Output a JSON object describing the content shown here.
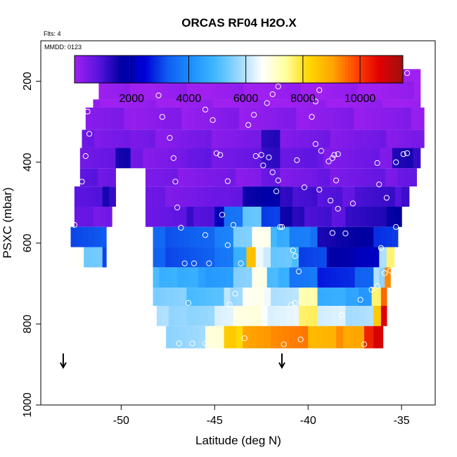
{
  "chart_data": {
    "type": "heatmap",
    "title": "ORCAS RF04 H2O.X",
    "notes": [
      "Flts: 4",
      "MMDD: 0123"
    ],
    "xlabel": "Latitude (deg N)",
    "ylabel": "PSXC (mbar)",
    "xlim": [
      -54.3,
      -33.2
    ],
    "ylim": [
      1000,
      100
    ],
    "y_reversed": true,
    "x_ticks": [
      -50,
      -45,
      -40,
      -35
    ],
    "x_tick_labels": [
      "-50",
      "-45",
      "-40",
      "-35"
    ],
    "y_ticks": [
      200,
      400,
      600,
      800,
      1000
    ],
    "y_tick_labels": [
      "200",
      "400",
      "600",
      "800",
      "1000"
    ],
    "colorbar": {
      "min": 0,
      "max": 11500,
      "ticks": [
        2000,
        4000,
        6000,
        8000,
        10000
      ],
      "tick_labels": [
        "2000",
        "4000",
        "6000",
        "8000",
        "10000"
      ],
      "colors": [
        "#a020f0",
        "#5a14e0",
        "#0000a0",
        "#0000d8",
        "#1060f0",
        "#1e90ff",
        "#40b8ff",
        "#9ad8ff",
        "#ffffff",
        "#ffffa0",
        "#ffd700",
        "#ffa500",
        "#ff4500",
        "#e00000",
        "#a01010"
      ]
    },
    "arrows": [
      {
        "lat": -53.1,
        "psxc": 890
      },
      {
        "lat": -41.4,
        "psxc": 890
      }
    ],
    "rows": [
      {
        "p0": 170,
        "p1": 200,
        "cells": [
          [
            -51.2,
            -42.2,
            50
          ],
          [
            -42.2,
            -34.0,
            50
          ]
        ]
      },
      {
        "p0": 200,
        "p1": 245,
        "cells": [
          [
            -51.2,
            -34.0,
            50
          ]
        ]
      },
      {
        "p0": 245,
        "p1": 265,
        "cells": [
          [
            -51.5,
            -34.0,
            50
          ]
        ]
      },
      {
        "p0": 265,
        "p1": 320,
        "cells": [
          [
            -51.9,
            -49.5,
            300
          ],
          [
            -49.5,
            -33.8,
            250
          ]
        ]
      },
      {
        "p0": 320,
        "p1": 365,
        "cells": [
          [
            -52.1,
            -49.5,
            500
          ],
          [
            -49.5,
            -42.5,
            400
          ],
          [
            -42.5,
            -41.5,
            1300
          ],
          [
            -41.5,
            -33.8,
            450
          ]
        ]
      },
      {
        "p0": 365,
        "p1": 415,
        "cells": [
          [
            -52.2,
            -50.3,
            600
          ],
          [
            -50.3,
            -49.5,
            1600
          ],
          [
            -49.5,
            -46.5,
            450
          ],
          [
            -46.5,
            -42.5,
            600
          ],
          [
            -42.5,
            -41.5,
            1200
          ],
          [
            -41.5,
            -39.5,
            700
          ],
          [
            -39.5,
            -35.5,
            500
          ],
          [
            -35.5,
            -34.0,
            1300
          ]
        ]
      },
      {
        "p0": 415,
        "p1": 460,
        "cells": [
          [
            -52.2,
            -50.3,
            700
          ],
          [
            -48.7,
            -42.5,
            400
          ],
          [
            -42.5,
            -41.5,
            700
          ],
          [
            -41.5,
            -39.5,
            500
          ],
          [
            -39.5,
            -35.2,
            550
          ],
          [
            -35.2,
            -34.2,
            600
          ]
        ]
      },
      {
        "p0": 460,
        "p1": 510,
        "cells": [
          [
            -52.5,
            -51.0,
            900
          ],
          [
            -51.0,
            -50.3,
            1300
          ],
          [
            -48.7,
            -44.5,
            500
          ],
          [
            -44.5,
            -43.5,
            650
          ],
          [
            -43.5,
            -42.5,
            1600
          ],
          [
            -42.5,
            -41.5,
            1900
          ],
          [
            -41.5,
            -39.5,
            1100
          ],
          [
            -39.5,
            -37.5,
            800
          ],
          [
            -37.5,
            -35.0,
            1000
          ],
          [
            -35.0,
            -34.6,
            1200
          ]
        ]
      },
      {
        "p0": 510,
        "p1": 560,
        "cells": [
          [
            -52.5,
            -51.5,
            600
          ],
          [
            -51.5,
            -50.5,
            500
          ],
          [
            -48.7,
            -46.5,
            700
          ],
          [
            -46.5,
            -45.0,
            1000
          ],
          [
            -45.0,
            -44.5,
            1900
          ],
          [
            -44.5,
            -43.5,
            3600
          ],
          [
            -43.5,
            -42.5,
            5300
          ],
          [
            -42.5,
            -41.5,
            3100
          ],
          [
            -41.5,
            -40.2,
            1400
          ],
          [
            -40.2,
            -38.0,
            900
          ],
          [
            -38.0,
            -35.8,
            1200
          ],
          [
            -35.8,
            -35.0,
            1700
          ]
        ]
      },
      {
        "p0": 560,
        "p1": 610,
        "cells": [
          [
            -52.7,
            -50.8,
            3200
          ],
          [
            -48.3,
            -45.0,
            3300
          ],
          [
            -45.0,
            -44.0,
            3800
          ],
          [
            -44.0,
            -43.0,
            5500
          ],
          [
            -43.0,
            -42.0,
            6800
          ],
          [
            -42.0,
            -41.0,
            4800
          ],
          [
            -41.0,
            -39.5,
            3700
          ],
          [
            -39.5,
            -38.5,
            1400
          ],
          [
            -38.5,
            -36.5,
            1600
          ],
          [
            -36.5,
            -35.2,
            3000
          ]
        ]
      },
      {
        "p0": 610,
        "p1": 660,
        "cells": [
          [
            -52.7,
            -52.0,
            6600
          ],
          [
            -52.0,
            -51.0,
            5400
          ],
          [
            -51.0,
            -50.8,
            3200
          ],
          [
            -48.3,
            -45.0,
            3200
          ],
          [
            -45.0,
            -44.0,
            3600
          ],
          [
            -44.0,
            -43.3,
            4800
          ],
          [
            -43.3,
            -42.8,
            8700
          ],
          [
            -42.8,
            -42.0,
            6300
          ],
          [
            -42.0,
            -40.5,
            5200
          ],
          [
            -40.5,
            -39.0,
            3000
          ],
          [
            -39.0,
            -37.5,
            1800
          ],
          [
            -37.5,
            -36.2,
            2200
          ],
          [
            -36.2,
            -35.8,
            5800
          ],
          [
            -35.8,
            -35.4,
            7600
          ]
        ]
      },
      {
        "p0": 660,
        "p1": 710,
        "cells": [
          [
            -48.3,
            -47.0,
            4900
          ],
          [
            -47.0,
            -45.5,
            4600
          ],
          [
            -45.5,
            -44.0,
            4300
          ],
          [
            -44.0,
            -43.0,
            5600
          ],
          [
            -43.0,
            -42.2,
            6900
          ],
          [
            -42.2,
            -41.0,
            4900
          ],
          [
            -41.0,
            -39.5,
            3600
          ],
          [
            -39.5,
            -37.5,
            2700
          ],
          [
            -37.5,
            -36.5,
            3400
          ],
          [
            -36.5,
            -35.9,
            5800
          ],
          [
            -35.9,
            -35.6,
            9200
          ]
        ]
      },
      {
        "p0": 710,
        "p1": 755,
        "cells": [
          [
            -48.3,
            -46.5,
            5500
          ],
          [
            -46.5,
            -44.5,
            5100
          ],
          [
            -44.5,
            -43.5,
            5900
          ],
          [
            -43.5,
            -42.0,
            6600
          ],
          [
            -42.0,
            -40.5,
            5900
          ],
          [
            -40.5,
            -39.5,
            7300
          ],
          [
            -39.5,
            -38.0,
            4800
          ],
          [
            -38.0,
            -36.6,
            4400
          ],
          [
            -36.6,
            -36.1,
            7600
          ],
          [
            -36.1,
            -35.8,
            9600
          ]
        ]
      },
      {
        "p0": 755,
        "p1": 805,
        "cells": [
          [
            -48.1,
            -46.5,
            5800
          ],
          [
            -46.5,
            -45.0,
            5600
          ],
          [
            -45.0,
            -44.0,
            6300
          ],
          [
            -44.0,
            -42.5,
            6900
          ],
          [
            -42.5,
            -40.5,
            6400
          ],
          [
            -40.5,
            -39.5,
            7600
          ],
          [
            -39.5,
            -38.0,
            6200
          ],
          [
            -38.0,
            -36.5,
            5900
          ],
          [
            -36.5,
            -36.1,
            8600
          ],
          [
            -36.1,
            -35.8,
            10600
          ]
        ]
      },
      {
        "p0": 805,
        "p1": 860,
        "cells": [
          [
            -47.6,
            -45.5,
            5700
          ],
          [
            -45.5,
            -44.5,
            7000
          ],
          [
            -44.5,
            -43.5,
            8300
          ],
          [
            -43.5,
            -42.0,
            9000
          ],
          [
            -42.0,
            -40.0,
            9300
          ],
          [
            -40.0,
            -38.5,
            8800
          ],
          [
            -38.5,
            -37.0,
            9100
          ],
          [
            -37.0,
            -36.5,
            10200
          ],
          [
            -36.5,
            -36.0,
            10800
          ]
        ]
      }
    ],
    "points": [
      [
        -51.1,
        195
      ],
      [
        -50.9,
        178
      ],
      [
        -50.6,
        178
      ],
      [
        -50.3,
        178
      ],
      [
        -50.0,
        178
      ],
      [
        -49.6,
        178
      ],
      [
        -49.2,
        178
      ],
      [
        -48.9,
        178
      ],
      [
        -48.5,
        178
      ],
      [
        -48.3,
        185
      ],
      [
        -48.0,
        235
      ],
      [
        -51.5,
        225
      ],
      [
        -51.8,
        275
      ],
      [
        -51.7,
        330
      ],
      [
        -51.9,
        385
      ],
      [
        -52.1,
        448
      ],
      [
        -52.5,
        555
      ],
      [
        -47.8,
        288
      ],
      [
        -47.4,
        340
      ],
      [
        -47.2,
        390
      ],
      [
        -47.1,
        448
      ],
      [
        -47.0,
        512
      ],
      [
        -46.8,
        562
      ],
      [
        -46.6,
        650
      ],
      [
        -46.1,
        650
      ],
      [
        -46.4,
        748
      ],
      [
        -45.5,
        270
      ],
      [
        -45.1,
        296
      ],
      [
        -44.7,
        382
      ],
      [
        -44.3,
        447
      ],
      [
        -45.3,
        650
      ],
      [
        -45.5,
        580
      ],
      [
        -44.3,
        605
      ],
      [
        -44.0,
        555
      ],
      [
        -43.6,
        650
      ],
      [
        -43.2,
        748
      ],
      [
        -43.4,
        835
      ],
      [
        -44.9,
        378
      ],
      [
        -44.6,
        530
      ],
      [
        -43.9,
        725
      ],
      [
        -44.2,
        752
      ],
      [
        -45.5,
        848
      ],
      [
        -46.2,
        848
      ],
      [
        -46.9,
        848
      ],
      [
        -43.2,
        308
      ],
      [
        -42.9,
        283
      ],
      [
        -42.2,
        254
      ],
      [
        -41.9,
        232
      ],
      [
        -41.6,
        213
      ],
      [
        -41.7,
        472
      ],
      [
        -41.5,
        560
      ],
      [
        -41.4,
        560
      ],
      [
        -42.8,
        385
      ],
      [
        -42.5,
        382
      ],
      [
        -42.1,
        388
      ],
      [
        -42.4,
        408
      ],
      [
        -41.9,
        425
      ],
      [
        -41.6,
        445
      ],
      [
        -40.7,
        632
      ],
      [
        -41.3,
        850
      ],
      [
        -40.4,
        838
      ],
      [
        -40.9,
        752
      ],
      [
        -40.7,
        748
      ],
      [
        -40.5,
        670
      ],
      [
        -40.8,
        618
      ],
      [
        -40.6,
        395
      ],
      [
        -40.2,
        462
      ],
      [
        -39.6,
        355
      ],
      [
        -39.4,
        468
      ],
      [
        -39.3,
        372
      ],
      [
        -38.9,
        398
      ],
      [
        -38.7,
        390
      ],
      [
        -38.8,
        495
      ],
      [
        -38.7,
        575
      ],
      [
        -38.6,
        382
      ],
      [
        -38.4,
        380
      ],
      [
        -38.5,
        445
      ],
      [
        -38.4,
        515
      ],
      [
        -38.0,
        576
      ],
      [
        -37.6,
        502
      ],
      [
        -37.2,
        740
      ],
      [
        -37.0,
        850
      ],
      [
        -38.2,
        778
      ],
      [
        -39.8,
        288
      ],
      [
        -39.6,
        250
      ],
      [
        -39.4,
        222
      ],
      [
        -39.1,
        196
      ],
      [
        -38.9,
        185
      ],
      [
        -38.7,
        178
      ],
      [
        -38.2,
        178
      ],
      [
        -37.6,
        178
      ],
      [
        -37.1,
        178
      ],
      [
        -36.6,
        178
      ],
      [
        -36.1,
        178
      ],
      [
        -35.6,
        178
      ],
      [
        -35.2,
        178
      ],
      [
        -34.7,
        180
      ],
      [
        -36.3,
        402
      ],
      [
        -36.2,
        455
      ],
      [
        -35.8,
        488
      ],
      [
        -35.3,
        400
      ],
      [
        -34.9,
        380
      ],
      [
        -34.7,
        378
      ],
      [
        -36.1,
        612
      ],
      [
        -35.9,
        674
      ],
      [
        -36.3,
        706
      ],
      [
        -36.6,
        715
      ],
      [
        -35.6,
        668
      ],
      [
        -35.3,
        560
      ]
    ]
  }
}
